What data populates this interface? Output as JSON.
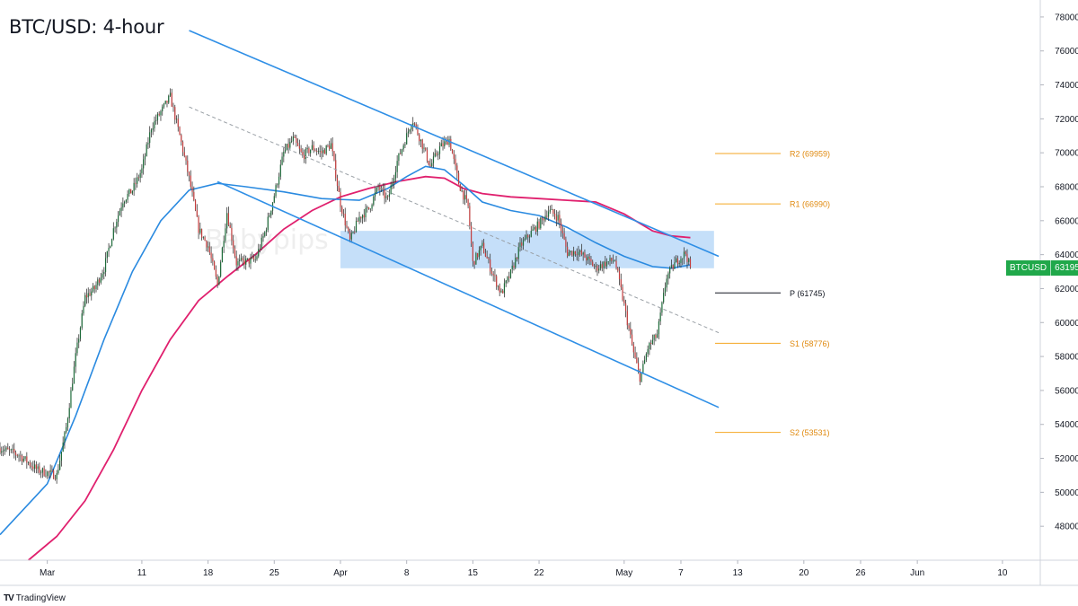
{
  "title": "BTC/USD: 4-hour",
  "watermark": "Babypips",
  "brand": {
    "logo": "TV",
    "name": "TradingView"
  },
  "price_badge": {
    "symbol": "BTCUSD",
    "price": "63195",
    "color": "#20a84a"
  },
  "colors": {
    "up": "#1e6b3a",
    "down": "#c43d3d",
    "wick": "#3a3a3a",
    "ma_short": "#2a8ae0",
    "ma_long": "#e0206e",
    "channel": "#2f8fe6",
    "zone": "#9fcaf5",
    "pivot_line": "#131722",
    "sr_line": "#f5a623"
  },
  "chart_data": {
    "type": "candlestick",
    "title": "BTC/USD: 4-hour",
    "y_axis": {
      "range": [
        46000,
        79000
      ],
      "ticks": [
        48000,
        50000,
        52000,
        54000,
        56000,
        58000,
        60000,
        62000,
        64000,
        66000,
        68000,
        70000,
        72000,
        74000,
        76000,
        78000
      ],
      "side": "right"
    },
    "x_axis": {
      "range_days": [
        -5,
        105
      ],
      "ticks": [
        {
          "label": "Mar",
          "day": 0
        },
        {
          "label": "11",
          "day": 10
        },
        {
          "label": "18",
          "day": 17
        },
        {
          "label": "25",
          "day": 24
        },
        {
          "label": "Apr",
          "day": 31
        },
        {
          "label": "8",
          "day": 38
        },
        {
          "label": "15",
          "day": 45
        },
        {
          "label": "22",
          "day": 52
        },
        {
          "label": "May",
          "day": 61
        },
        {
          "label": "7",
          "day": 67
        },
        {
          "label": "13",
          "day": 73
        },
        {
          "label": "20",
          "day": 80
        },
        {
          "label": "26",
          "day": 86
        },
        {
          "label": "Jun",
          "day": 92
        },
        {
          "label": "10",
          "day": 101
        }
      ]
    },
    "price_path": [
      [
        -5,
        52600
      ],
      [
        -3,
        52200
      ],
      [
        -1,
        51300
      ],
      [
        1,
        51000
      ],
      [
        2,
        53800
      ],
      [
        3,
        58000
      ],
      [
        4,
        61500
      ],
      [
        5,
        62000
      ],
      [
        6,
        63200
      ],
      [
        7,
        65500
      ],
      [
        8,
        67200
      ],
      [
        9,
        67800
      ],
      [
        10,
        69000
      ],
      [
        11,
        71500
      ],
      [
        13,
        73300
      ],
      [
        14,
        71000
      ],
      [
        15,
        68500
      ],
      [
        16,
        65500
      ],
      [
        17,
        64500
      ],
      [
        18,
        62200
      ],
      [
        19,
        66500
      ],
      [
        20,
        63500
      ],
      [
        22,
        63700
      ],
      [
        23,
        65300
      ],
      [
        24,
        67500
      ],
      [
        25,
        70000
      ],
      [
        26,
        70800
      ],
      [
        27,
        69800
      ],
      [
        28,
        70300
      ],
      [
        29,
        70000
      ],
      [
        30,
        70500
      ],
      [
        31,
        67000
      ],
      [
        32,
        64800
      ],
      [
        33,
        66200
      ],
      [
        34,
        66700
      ],
      [
        35,
        68000
      ],
      [
        36,
        67200
      ],
      [
        37,
        69500
      ],
      [
        38,
        71000
      ],
      [
        38.6,
        72000
      ],
      [
        39.5,
        70700
      ],
      [
        40.5,
        69200
      ],
      [
        41.5,
        70300
      ],
      [
        42.5,
        70800
      ],
      [
        43.5,
        68200
      ],
      [
        44.5,
        66800
      ],
      [
        45,
        63500
      ],
      [
        46,
        64500
      ],
      [
        47,
        63000
      ],
      [
        48,
        61700
      ],
      [
        49,
        62900
      ],
      [
        50,
        64500
      ],
      [
        51,
        65200
      ],
      [
        52,
        65800
      ],
      [
        53,
        66600
      ],
      [
        54,
        66200
      ],
      [
        55,
        64100
      ],
      [
        56,
        64200
      ],
      [
        57,
        63800
      ],
      [
        58,
        63200
      ],
      [
        59,
        63500
      ],
      [
        60,
        63700
      ],
      [
        61,
        61000
      ],
      [
        62,
        58200
      ],
      [
        62.7,
        56700
      ],
      [
        63.5,
        58500
      ],
      [
        64.5,
        59300
      ],
      [
        65.5,
        62700
      ],
      [
        66.5,
        63600
      ],
      [
        67.5,
        64100
      ],
      [
        68,
        63195
      ]
    ],
    "overlays": {
      "ma_short": [
        [
          -5,
          47500
        ],
        [
          0,
          50500
        ],
        [
          3,
          54500
        ],
        [
          6,
          59000
        ],
        [
          9,
          63000
        ],
        [
          12,
          66000
        ],
        [
          15,
          67800
        ],
        [
          18,
          68200
        ],
        [
          21,
          68000
        ],
        [
          25,
          67700
        ],
        [
          29,
          67300
        ],
        [
          33,
          67200
        ],
        [
          36,
          67900
        ],
        [
          38,
          68600
        ],
        [
          40,
          69200
        ],
        [
          42,
          69000
        ],
        [
          44,
          68100
        ],
        [
          46,
          67100
        ],
        [
          49,
          66600
        ],
        [
          52,
          66300
        ],
        [
          55,
          65600
        ],
        [
          58,
          64700
        ],
        [
          61,
          63900
        ],
        [
          64,
          63300
        ],
        [
          66,
          63200
        ],
        [
          68,
          63400
        ]
      ],
      "ma_long": [
        [
          -2,
          46000
        ],
        [
          1,
          47400
        ],
        [
          4,
          49500
        ],
        [
          7,
          52500
        ],
        [
          10,
          56000
        ],
        [
          13,
          59000
        ],
        [
          16,
          61300
        ],
        [
          19,
          62700
        ],
        [
          22,
          64000
        ],
        [
          25,
          65500
        ],
        [
          28,
          66600
        ],
        [
          31,
          67400
        ],
        [
          34,
          67900
        ],
        [
          37,
          68300
        ],
        [
          40,
          68600
        ],
        [
          42,
          68500
        ],
        [
          44,
          67900
        ],
        [
          46,
          67600
        ],
        [
          49,
          67400
        ],
        [
          52,
          67300
        ],
        [
          55,
          67200
        ],
        [
          58,
          67100
        ],
        [
          61,
          66400
        ],
        [
          64,
          65400
        ],
        [
          66,
          65100
        ],
        [
          68,
          65000
        ]
      ],
      "channel_upper": [
        [
          15,
          77200
        ],
        [
          71,
          63900
        ]
      ],
      "channel_lower": [
        [
          18,
          68300
        ],
        [
          71,
          55000
        ]
      ],
      "channel_mid": [
        [
          15,
          72700
        ],
        [
          71,
          59400
        ]
      ],
      "zone": {
        "from_day": 31,
        "to_day": 70.5,
        "low": 63200,
        "high": 65400
      }
    },
    "levels": [
      {
        "label": "R2 (69959)",
        "value": 69959,
        "color": "#f5a623"
      },
      {
        "label": "R1 (66990)",
        "value": 66990,
        "color": "#f5a623"
      },
      {
        "label": "P (61745)",
        "value": 61745,
        "color": "#131722"
      },
      {
        "label": "S1 (58776)",
        "value": 58776,
        "color": "#f5a623"
      },
      {
        "label": "S2 (53531)",
        "value": 53531,
        "color": "#f5a623"
      }
    ],
    "last_price": 63195
  }
}
